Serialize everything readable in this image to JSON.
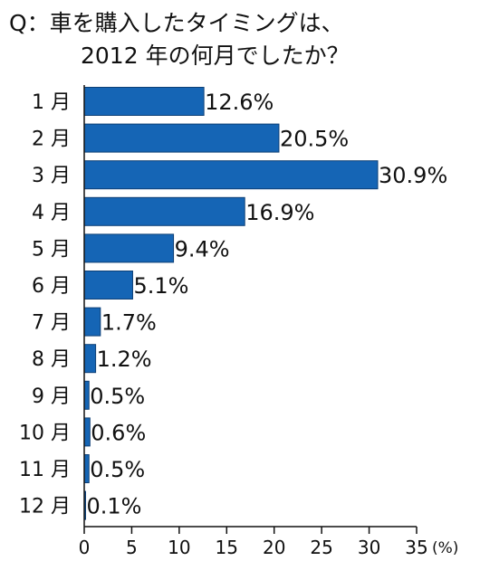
{
  "chart_data": {
    "type": "bar",
    "orientation": "horizontal",
    "title_line1": "Q：車を購入したタイミングは、",
    "title_line2": "2012 年の何月でしたか？",
    "categories": [
      "1 月",
      "2 月",
      "3 月",
      "4 月",
      "5 月",
      "6 月",
      "7 月",
      "8 月",
      "9 月",
      "10 月",
      "11 月",
      "12 月"
    ],
    "values": [
      12.6,
      20.5,
      30.9,
      16.9,
      9.4,
      5.1,
      1.7,
      1.2,
      0.5,
      0.6,
      0.5,
      0.1
    ],
    "value_labels": [
      "12.6%",
      "20.5%",
      "30.9%",
      "16.9%",
      "9.4%",
      "5.1%",
      "1.7%",
      "1.2%",
      "0.5%",
      "0.6%",
      "0.5%",
      "0.1%"
    ],
    "x_ticks": [
      "0",
      "5",
      "10",
      "15",
      "20",
      "25",
      "30",
      "35"
    ],
    "xlim": [
      0,
      35
    ],
    "x_unit": "(%)",
    "grid": false,
    "bar_color": "#1565b5"
  }
}
